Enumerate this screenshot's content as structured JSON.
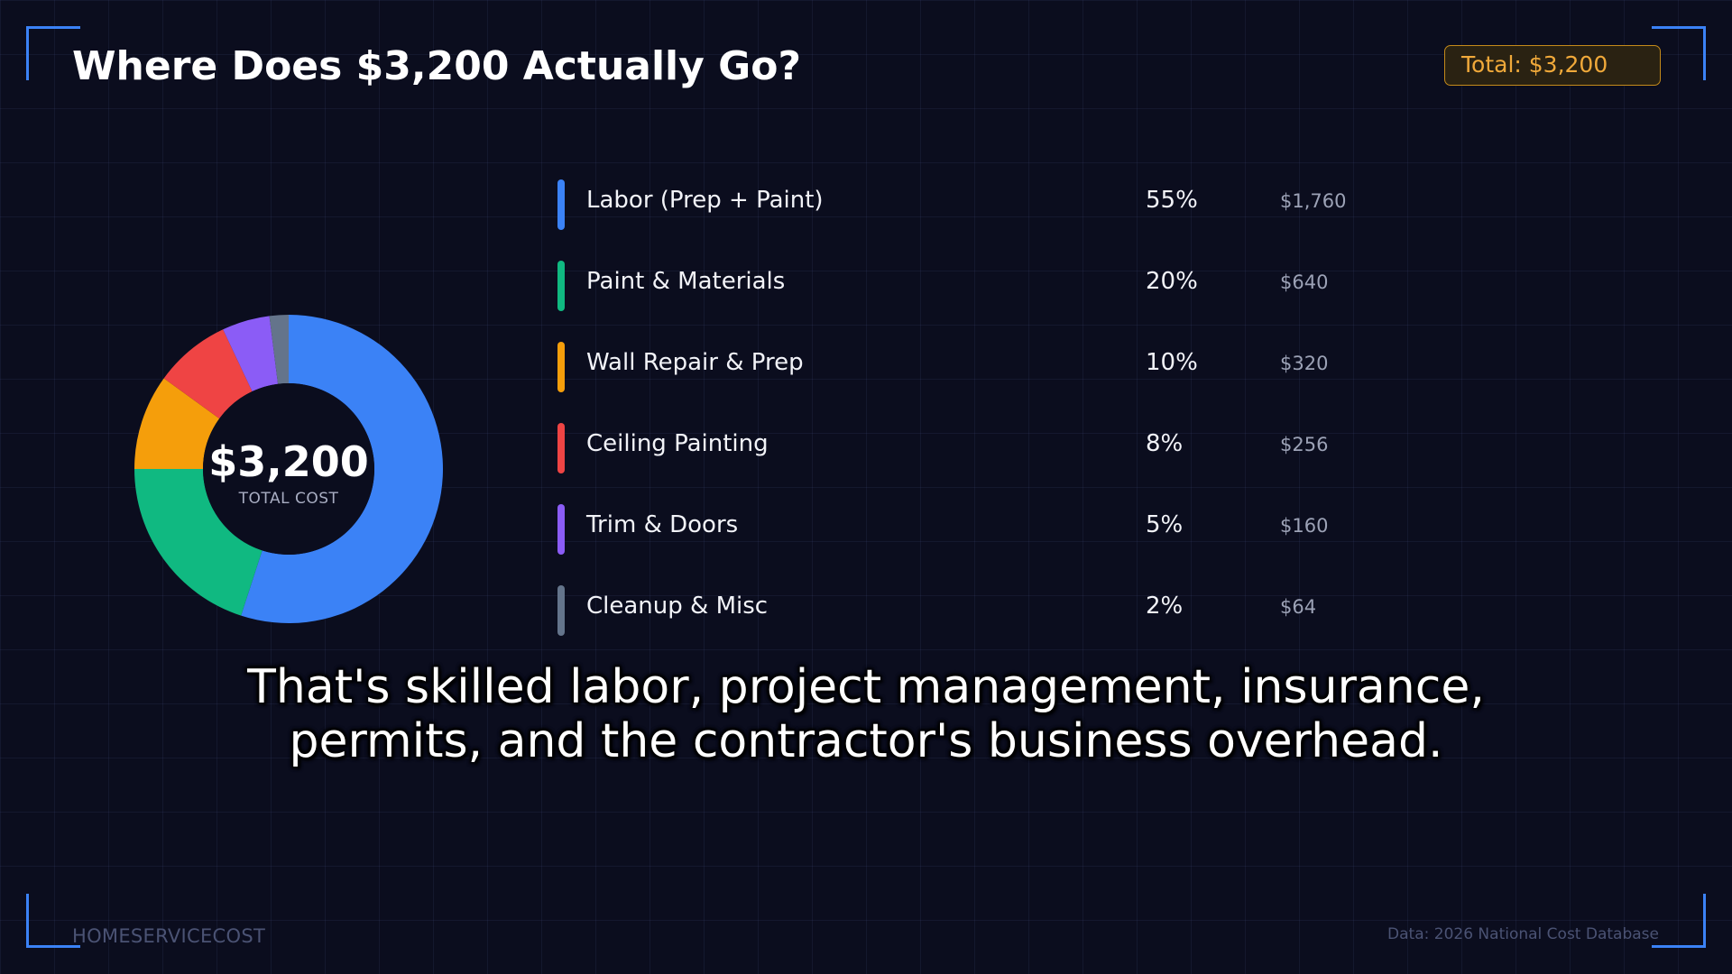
{
  "header": {
    "title": "Where Does $3,200 Actually Go?",
    "total_badge": "Total: $3,200"
  },
  "donut": {
    "center_value": "$3,200",
    "center_label": "TOTAL COST"
  },
  "chart_data": {
    "type": "pie",
    "categories": [
      "Labor (Prep + Paint)",
      "Paint & Materials",
      "Wall Repair & Prep",
      "Ceiling Painting",
      "Trim & Doors",
      "Cleanup & Misc"
    ],
    "values": [
      55,
      20,
      10,
      8,
      5,
      2
    ],
    "percent_labels": [
      "55%",
      "20%",
      "10%",
      "8%",
      "5%",
      "2%"
    ],
    "amounts": [
      "$1,760",
      "$640",
      "$320",
      "$256",
      "$160",
      "$64"
    ],
    "colors": [
      "#3b82f6",
      "#10b981",
      "#f59e0b",
      "#ef4444",
      "#8b5cf6",
      "#64748b"
    ],
    "title": "Where Does $3,200 Actually Go?"
  },
  "caption": {
    "line1": "That's skilled labor, project management, insurance,",
    "line2": "permits, and the contractor's business overhead."
  },
  "footer": {
    "brand": "HOMESERVICECOST",
    "source": "Data: 2026 National Cost Database"
  }
}
